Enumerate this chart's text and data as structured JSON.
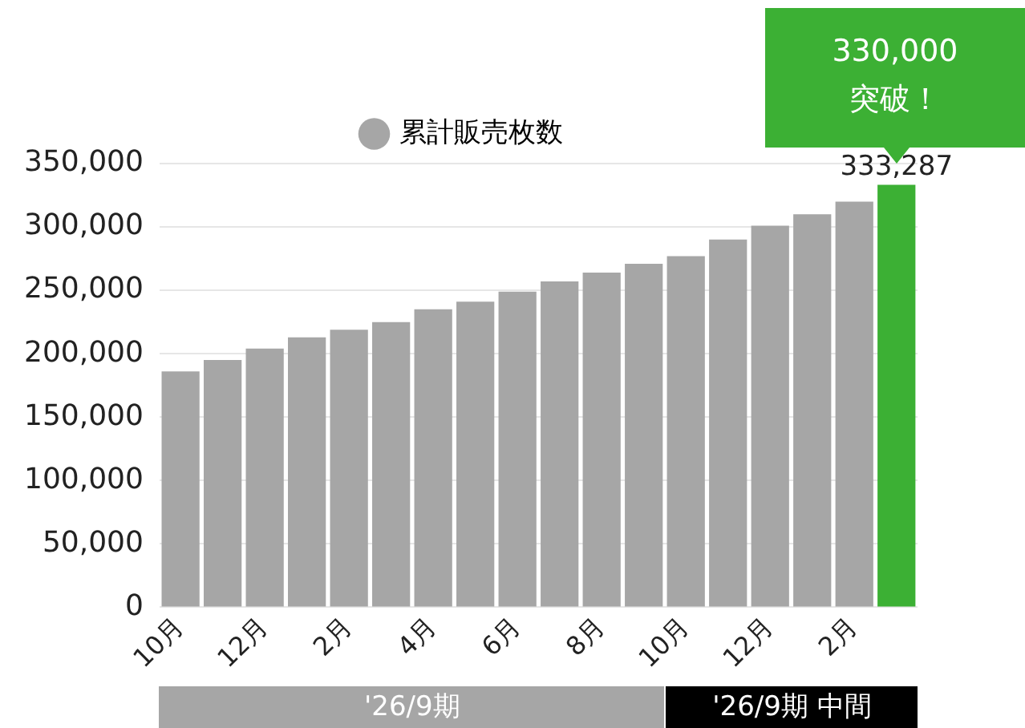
{
  "chart_data": {
    "type": "bar",
    "categories": [
      "10月",
      null,
      "12月",
      null,
      "2月",
      null,
      "4月",
      null,
      "6月",
      null,
      "8月",
      null,
      "10月",
      null,
      "12月",
      null,
      "2月",
      null
    ],
    "series": [
      {
        "name": "累計販売枚数",
        "color": "#a6a6a6",
        "colors": [
          "#a6a6a6",
          "#a6a6a6",
          "#a6a6a6",
          "#a6a6a6",
          "#a6a6a6",
          "#a6a6a6",
          "#a6a6a6",
          "#a6a6a6",
          "#a6a6a6",
          "#a6a6a6",
          "#a6a6a6",
          "#a6a6a6",
          "#a6a6a6",
          "#a6a6a6",
          "#a6a6a6",
          "#a6a6a6",
          "#a6a6a6",
          "#3cb034"
        ],
        "values": [
          186000,
          195000,
          204000,
          213000,
          219000,
          225000,
          235000,
          241000,
          249000,
          257000,
          264000,
          271000,
          277000,
          290000,
          301000,
          310000,
          320000,
          333287
        ],
        "value_labels": [
          null,
          null,
          null,
          null,
          null,
          null,
          null,
          null,
          null,
          null,
          null,
          null,
          null,
          null,
          null,
          null,
          null,
          "333,287"
        ]
      }
    ],
    "ylim": [
      0,
      350000
    ],
    "yticks": [
      0,
      {
        "value": 50000,
        "label": "50,000"
      },
      {
        "value": 100000,
        "label": "100,000"
      },
      {
        "value": 150000,
        "label": "150,000"
      },
      {
        "value": 200000,
        "label": "200,000"
      },
      {
        "value": 250000,
        "label": "250,000"
      },
      {
        "value": 300000,
        "label": "300,000"
      },
      {
        "value": 350000,
        "label": "350,000"
      }
    ],
    "grid": "y",
    "legend": "top",
    "annotations": [
      "'26/9期",
      "'26/9期 中間",
      "330,000\n突破！"
    ]
  }
}
